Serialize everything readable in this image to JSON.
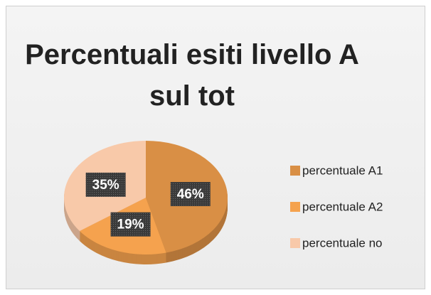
{
  "chart_data": {
    "type": "pie",
    "title": "Percentuali esiti livello A sul tot",
    "categories": [
      "percentuale A1",
      "percentuale A2",
      "percentuale no"
    ],
    "values": [
      46,
      19,
      35
    ],
    "value_labels": [
      "46%",
      "19%",
      "35%"
    ],
    "colors": [
      "#d98f45",
      "#f5a24e",
      "#f8c9a9"
    ],
    "legend": "right"
  }
}
